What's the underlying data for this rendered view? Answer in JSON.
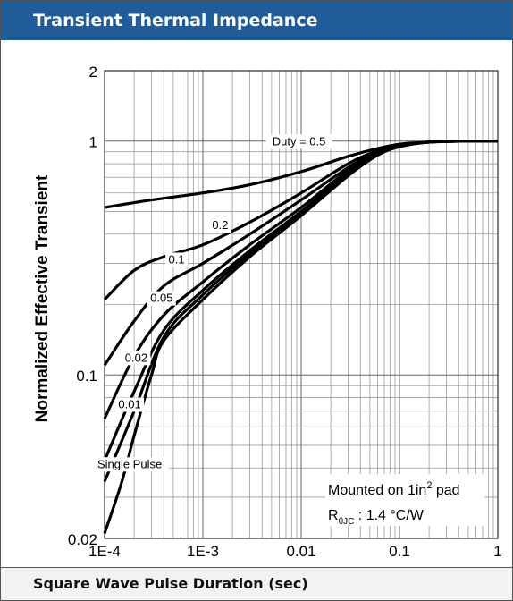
{
  "header": {
    "title": "Transient Thermal Impedance"
  },
  "footer": {
    "xlabel": "Square Wave Pulse Duration (sec)"
  },
  "chart_data": {
    "type": "line",
    "title": "Transient Thermal Impedance",
    "xlabel": "Square Wave Pulse Duration (sec)",
    "ylabel": "Normalized Effective Transient",
    "x_scale": "log",
    "y_scale": "log",
    "xlim": [
      0.0001,
      1
    ],
    "ylim": [
      0.02,
      2
    ],
    "x_ticks": [
      {
        "value": 0.0001,
        "label": "1E-4"
      },
      {
        "value": 0.001,
        "label": "1E-3"
      },
      {
        "value": 0.01,
        "label": "0.01"
      },
      {
        "value": 0.1,
        "label": "0.1"
      },
      {
        "value": 1,
        "label": "1"
      }
    ],
    "y_ticks": [
      {
        "value": 0.02,
        "label": "0.02"
      },
      {
        "value": 0.1,
        "label": "0.1"
      },
      {
        "value": 1,
        "label": "1"
      },
      {
        "value": 2,
        "label": "2"
      }
    ],
    "grid": true,
    "series": [
      {
        "name": "Duty = 0.5",
        "label_at": [
          0.0095,
          0.96
        ],
        "x": [
          0.0001,
          0.0003,
          0.001,
          0.003,
          0.01,
          0.03,
          0.06,
          0.1,
          0.2,
          0.5,
          1
        ],
        "y": [
          0.52,
          0.56,
          0.6,
          0.65,
          0.74,
          0.86,
          0.93,
          0.97,
          0.99,
          1.0,
          1.0
        ]
      },
      {
        "name": "0.2",
        "label_at": [
          0.0015,
          0.42
        ],
        "x": [
          0.0001,
          0.0002,
          0.0004,
          0.001,
          0.003,
          0.01,
          0.03,
          0.06,
          0.1,
          0.2,
          0.5,
          1
        ],
        "y": [
          0.21,
          0.28,
          0.32,
          0.36,
          0.45,
          0.6,
          0.8,
          0.91,
          0.96,
          0.99,
          1.0,
          1.0
        ]
      },
      {
        "name": "0.1",
        "label_at": [
          0.00054,
          0.3
        ],
        "x": [
          0.0001,
          0.0002,
          0.0004,
          0.001,
          0.003,
          0.01,
          0.03,
          0.06,
          0.1,
          0.2,
          0.5,
          1
        ],
        "y": [
          0.11,
          0.17,
          0.24,
          0.3,
          0.4,
          0.56,
          0.77,
          0.9,
          0.96,
          0.99,
          1.0,
          1.0
        ]
      },
      {
        "name": "0.05",
        "label_at": [
          0.00038,
          0.205
        ],
        "x": [
          0.0001,
          0.0002,
          0.0004,
          0.001,
          0.003,
          0.01,
          0.03,
          0.06,
          0.1,
          0.2,
          0.5,
          1
        ],
        "y": [
          0.065,
          0.12,
          0.18,
          0.25,
          0.36,
          0.52,
          0.75,
          0.89,
          0.95,
          0.99,
          1.0,
          1.0
        ]
      },
      {
        "name": "0.02",
        "label_at": [
          0.00021,
          0.114
        ],
        "x": [
          0.0001,
          0.0002,
          0.0004,
          0.001,
          0.003,
          0.01,
          0.03,
          0.06,
          0.1,
          0.2,
          0.5,
          1
        ],
        "y": [
          0.043,
          0.085,
          0.155,
          0.23,
          0.34,
          0.5,
          0.73,
          0.88,
          0.95,
          0.99,
          1.0,
          1.0
        ]
      },
      {
        "name": "0.01",
        "label_at": [
          0.00018,
          0.072
        ],
        "x": [
          0.0001,
          0.0002,
          0.0004,
          0.001,
          0.003,
          0.01,
          0.03,
          0.06,
          0.1,
          0.2,
          0.5,
          1
        ],
        "y": [
          0.035,
          0.07,
          0.145,
          0.22,
          0.33,
          0.49,
          0.72,
          0.875,
          0.95,
          0.99,
          1.0,
          1.0
        ]
      },
      {
        "name": "Single Pulse",
        "label_at": [
          0.00018,
          0.04
        ],
        "x": [
          0.0001,
          0.00015,
          0.0002,
          0.0003,
          0.0004,
          0.001,
          0.003,
          0.01,
          0.03,
          0.06,
          0.1,
          0.2,
          0.5,
          1
        ],
        "y": [
          0.021,
          0.035,
          0.055,
          0.1,
          0.14,
          0.21,
          0.32,
          0.48,
          0.71,
          0.87,
          0.945,
          0.99,
          1.0,
          1.0
        ]
      }
    ],
    "annotations": [
      {
        "text": "Mounted on 1in² pad"
      },
      {
        "text": "RθJC : 1.4 °C/W"
      }
    ]
  }
}
